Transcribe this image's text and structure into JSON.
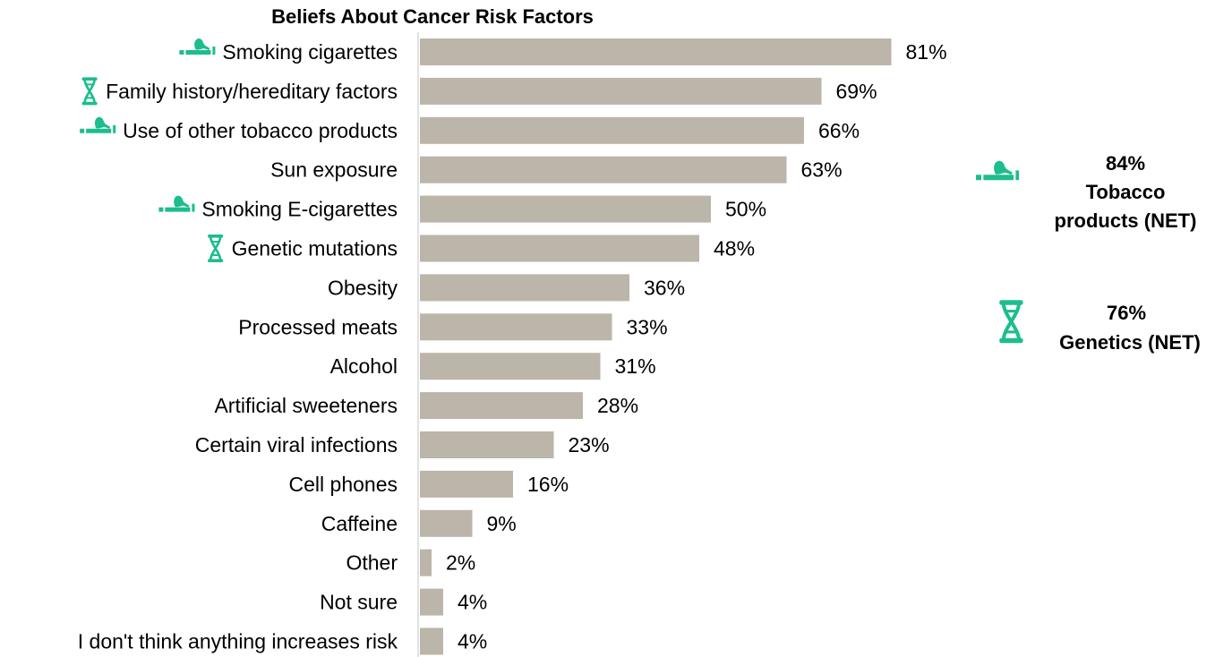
{
  "chart_data": {
    "type": "bar",
    "orientation": "horizontal",
    "title": "Beliefs About Cancer Risk Factors",
    "xlabel": "",
    "ylabel": "",
    "xlim": [
      0,
      100
    ],
    "grid": false,
    "bar_color": "#bbb5aa",
    "icon_color": "#1dbd8e",
    "categories": [
      "Smoking cigarettes",
      "Family history/hereditary factors",
      "Use of other tobacco products",
      "Sun exposure",
      "Smoking E-cigarettes",
      "Genetic mutations",
      "Obesity",
      "Processed meats",
      "Alcohol",
      "Artificial sweeteners",
      "Certain viral infections",
      "Cell phones",
      "Caffeine",
      "Other",
      "Not sure",
      "I don't think anything increases risk"
    ],
    "values": [
      81,
      69,
      66,
      63,
      50,
      48,
      36,
      33,
      31,
      28,
      23,
      16,
      9,
      2,
      4,
      4
    ],
    "value_labels": [
      "81%",
      "69%",
      "66%",
      "63%",
      "50%",
      "48%",
      "36%",
      "33%",
      "31%",
      "28%",
      "23%",
      "16%",
      "9%",
      "2%",
      "4%",
      "4%"
    ],
    "category_icons": [
      "cigarette-icon",
      "dna-icon",
      "cigarette-icon",
      "",
      "cigarette-icon",
      "dna-icon",
      "",
      "",
      "",
      "",
      "",
      "",
      "",
      "",
      "",
      ""
    ],
    "annotations": [
      {
        "icon": "cigarette-icon",
        "value": "84%",
        "label_lines": [
          "Tobacco",
          "products (NET)"
        ]
      },
      {
        "icon": "dna-icon",
        "value": "76%",
        "label_lines": [
          "Genetics (NET)"
        ]
      }
    ]
  }
}
